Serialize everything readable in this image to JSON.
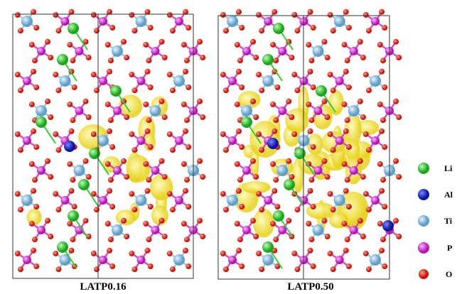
{
  "panels": [
    {
      "label": "LATP0.16"
    },
    {
      "label": "LATP0.50"
    }
  ],
  "legend": [
    {
      "label": "Li"
    },
    {
      "label": "Al"
    },
    {
      "label": "Ti"
    },
    {
      "label": "P"
    },
    {
      "label": "O"
    }
  ]
}
